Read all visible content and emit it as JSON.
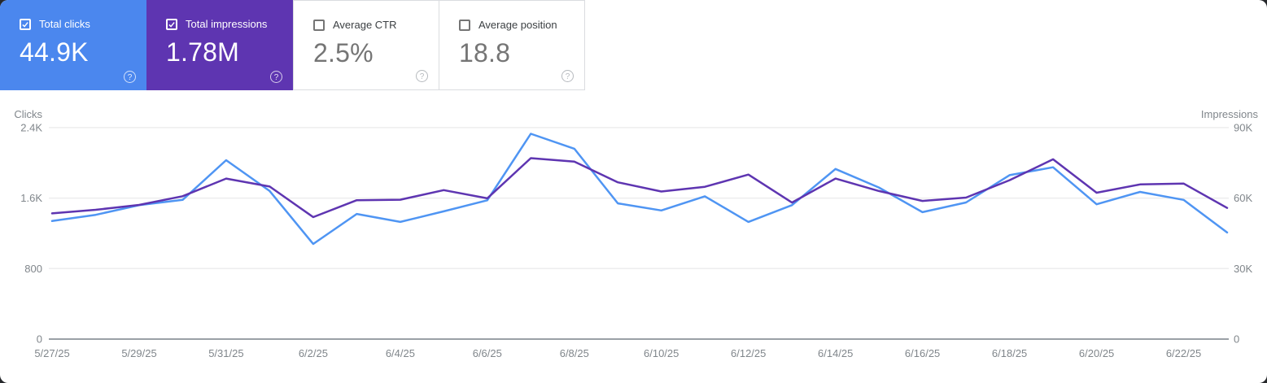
{
  "cards": [
    {
      "label": "Total clicks",
      "value": "44.9K",
      "checked": true,
      "selected": true,
      "color": "#4b87ee"
    },
    {
      "label": "Total impressions",
      "value": "1.78M",
      "checked": true,
      "selected": true,
      "color": "#5e35b1"
    },
    {
      "label": "Average CTR",
      "value": "2.5%",
      "checked": false,
      "selected": false,
      "color": ""
    },
    {
      "label": "Average position",
      "value": "18.8",
      "checked": false,
      "selected": false,
      "color": ""
    }
  ],
  "help_glyph": "?",
  "chart_data": {
    "type": "line",
    "x": [
      "5/27/25",
      "5/28/25",
      "5/29/25",
      "5/30/25",
      "5/31/25",
      "6/1/25",
      "6/2/25",
      "6/3/25",
      "6/4/25",
      "6/5/25",
      "6/6/25",
      "6/7/25",
      "6/8/25",
      "6/9/25",
      "6/10/25",
      "6/11/25",
      "6/12/25",
      "6/13/25",
      "6/14/25",
      "6/15/25",
      "6/16/25",
      "6/17/25",
      "6/18/25",
      "6/19/25",
      "6/20/25",
      "6/21/25",
      "6/22/25",
      "6/23/25"
    ],
    "x_tick_every": 2,
    "series": [
      {
        "name": "Clicks",
        "axis": "left",
        "color": "#4f95f3",
        "values": [
          1340,
          1410,
          1520,
          1580,
          2030,
          1680,
          1080,
          1420,
          1330,
          1450,
          1575,
          2330,
          2160,
          1540,
          1460,
          1620,
          1330,
          1520,
          1930,
          1720,
          1440,
          1550,
          1860,
          1950,
          1530,
          1670,
          1580,
          1210
        ]
      },
      {
        "name": "Impressions",
        "axis": "right",
        "color": "#5e35b1",
        "values": [
          53500,
          55000,
          57100,
          60800,
          68300,
          64900,
          51900,
          59100,
          59300,
          63400,
          59900,
          77000,
          75500,
          66700,
          62800,
          64800,
          70000,
          58100,
          68300,
          63000,
          58800,
          60200,
          67600,
          76500,
          62300,
          65800,
          66200,
          55800
        ]
      }
    ],
    "left_axis": {
      "title": "Clicks",
      "ticks": [
        "0",
        "800",
        "1.6K",
        "2.4K"
      ],
      "max": 2400
    },
    "right_axis": {
      "title": "Impressions",
      "ticks": [
        "0",
        "30K",
        "60K",
        "90K"
      ],
      "max": 90000
    },
    "grid": "horizontal",
    "legend": "none"
  }
}
